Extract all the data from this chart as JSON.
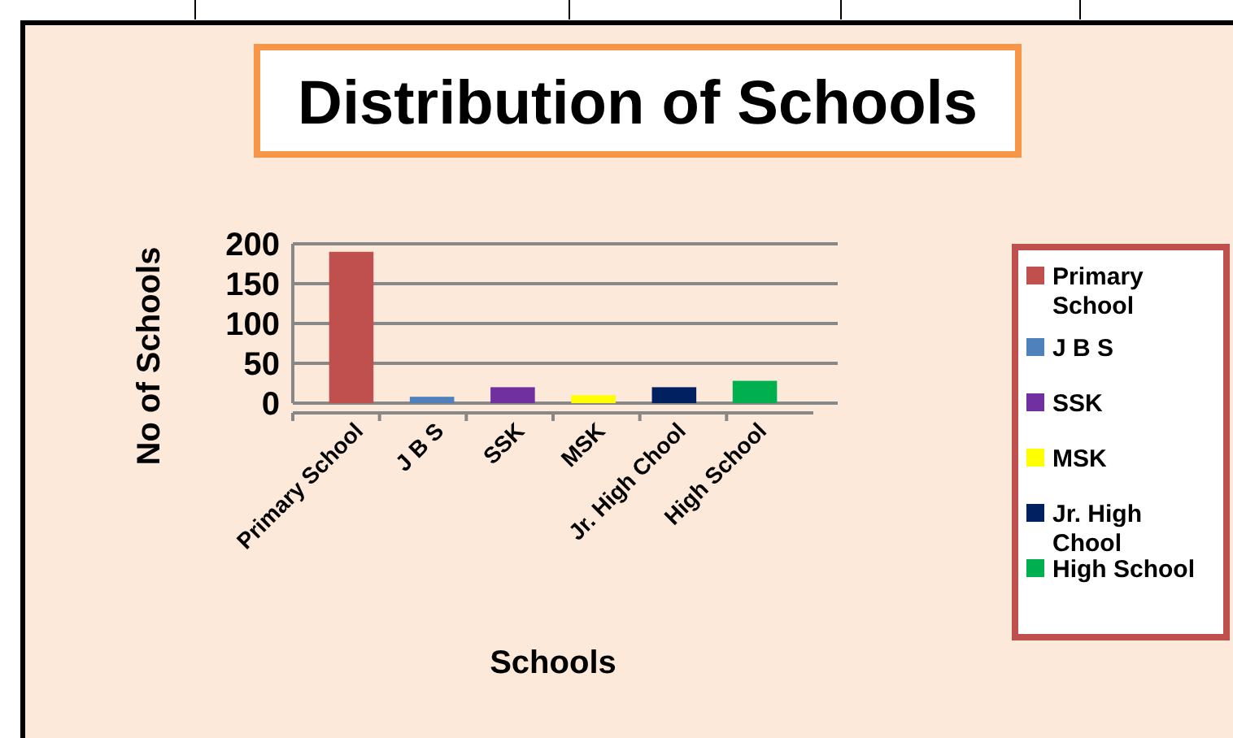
{
  "chart_data": {
    "type": "bar",
    "title": "Distribution of Schools",
    "xlabel": "Schools",
    "ylabel": "No of Schools",
    "categories": [
      "Primary School",
      "J B S",
      "SSK",
      "MSK",
      "Jr. High Chool",
      "High School"
    ],
    "series": [
      {
        "name": "Primary School",
        "color": "#c0504d",
        "values": [
          190,
          null,
          null,
          null,
          null,
          null
        ]
      },
      {
        "name": "J B S",
        "color": "#4f81bd",
        "values": [
          null,
          8,
          null,
          null,
          null,
          null
        ]
      },
      {
        "name": "SSK",
        "color": "#7030a0",
        "values": [
          null,
          null,
          20,
          null,
          null,
          null
        ]
      },
      {
        "name": "MSK",
        "color": "#ffff00",
        "values": [
          null,
          null,
          null,
          10,
          null,
          null
        ]
      },
      {
        "name": "Jr. High Chool",
        "color": "#002060",
        "values": [
          null,
          null,
          null,
          null,
          20,
          null
        ]
      },
      {
        "name": "High School",
        "color": "#00b050",
        "values": [
          null,
          null,
          null,
          null,
          null,
          28
        ]
      }
    ],
    "ylim": [
      0,
      200
    ],
    "yticks": [
      0,
      50,
      100,
      150,
      200
    ],
    "grid": "y",
    "legend": "right"
  }
}
